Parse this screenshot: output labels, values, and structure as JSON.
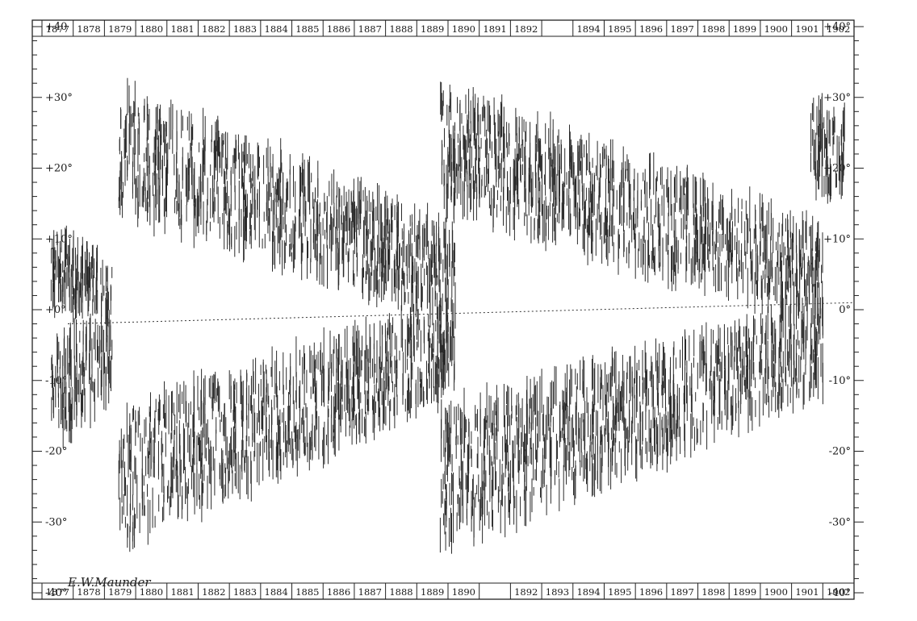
{
  "chart_data": {
    "type": "scatter",
    "title": "",
    "xlabel": "",
    "ylabel": "",
    "x_range": [
      1876.5,
      1902.8
    ],
    "ylim": [
      -40,
      40
    ],
    "grid": false,
    "top_year_labels": [
      "1877",
      "1878",
      "1879",
      "1880",
      "1881",
      "1882",
      "1883",
      "1884",
      "1885",
      "1886",
      "1887",
      "1888",
      "1889",
      "1890",
      "1891",
      "1892",
      "",
      "1894",
      "1895",
      "1896",
      "1897",
      "1898",
      "1899",
      "1900",
      "1901",
      "1902"
    ],
    "bottom_year_labels": [
      "1877",
      "1878",
      "1879",
      "1880",
      "1881",
      "1882",
      "1883",
      "1884",
      "1885",
      "1886",
      "1887",
      "1888",
      "1889",
      "1890",
      "",
      "1892",
      "1893",
      "1894",
      "1895",
      "1896",
      "1897",
      "1898",
      "1899",
      "1900",
      "1901",
      "1902"
    ],
    "left_lat_labels": [
      "+40",
      "+30°",
      "+20°",
      "+10°",
      "+0°",
      "-10°",
      "-20°",
      "-30°",
      "-40°"
    ],
    "right_lat_labels": [
      "+40°",
      "+30°",
      "+20°",
      "+10°",
      "0°",
      "-10°",
      "-20°",
      "-30°",
      "-40°"
    ],
    "lat_values": [
      40,
      30,
      20,
      10,
      0,
      -10,
      -20,
      -30,
      -40
    ],
    "equator_tilt_deg": [
      -2,
      1
    ],
    "series": [
      {
        "cycle_start": 1879.0,
        "cycle_end": 1890.0,
        "hemisphere": "north",
        "lat_start": [
          16,
          30
        ],
        "lat_end": [
          0,
          10
        ]
      },
      {
        "cycle_start": 1879.0,
        "cycle_end": 1890.0,
        "hemisphere": "south",
        "lat_start": [
          -32,
          -16
        ],
        "lat_end": [
          -10,
          0
        ]
      },
      {
        "cycle_start": 1889.5,
        "cycle_end": 1902.0,
        "hemisphere": "north",
        "lat_start": [
          16,
          30
        ],
        "lat_end": [
          0,
          10
        ]
      },
      {
        "cycle_start": 1889.5,
        "cycle_end": 1902.0,
        "hemisphere": "south",
        "lat_start": [
          -32,
          -16
        ],
        "lat_end": [
          -10,
          0
        ]
      },
      {
        "cycle_start": 1876.8,
        "cycle_end": 1878.8,
        "hemisphere": "north",
        "lat_start": [
          2,
          10
        ],
        "lat_end": [
          0,
          6
        ]
      },
      {
        "cycle_start": 1876.8,
        "cycle_end": 1878.8,
        "hemisphere": "south",
        "lat_start": [
          -18,
          -6
        ],
        "lat_end": [
          -10,
          -2
        ]
      },
      {
        "cycle_start": 1901.6,
        "cycle_end": 1902.7,
        "hemisphere": "north",
        "lat_start": [
          18,
          28
        ],
        "lat_end": [
          18,
          26
        ]
      }
    ],
    "signature": "E.W.Maunder"
  }
}
